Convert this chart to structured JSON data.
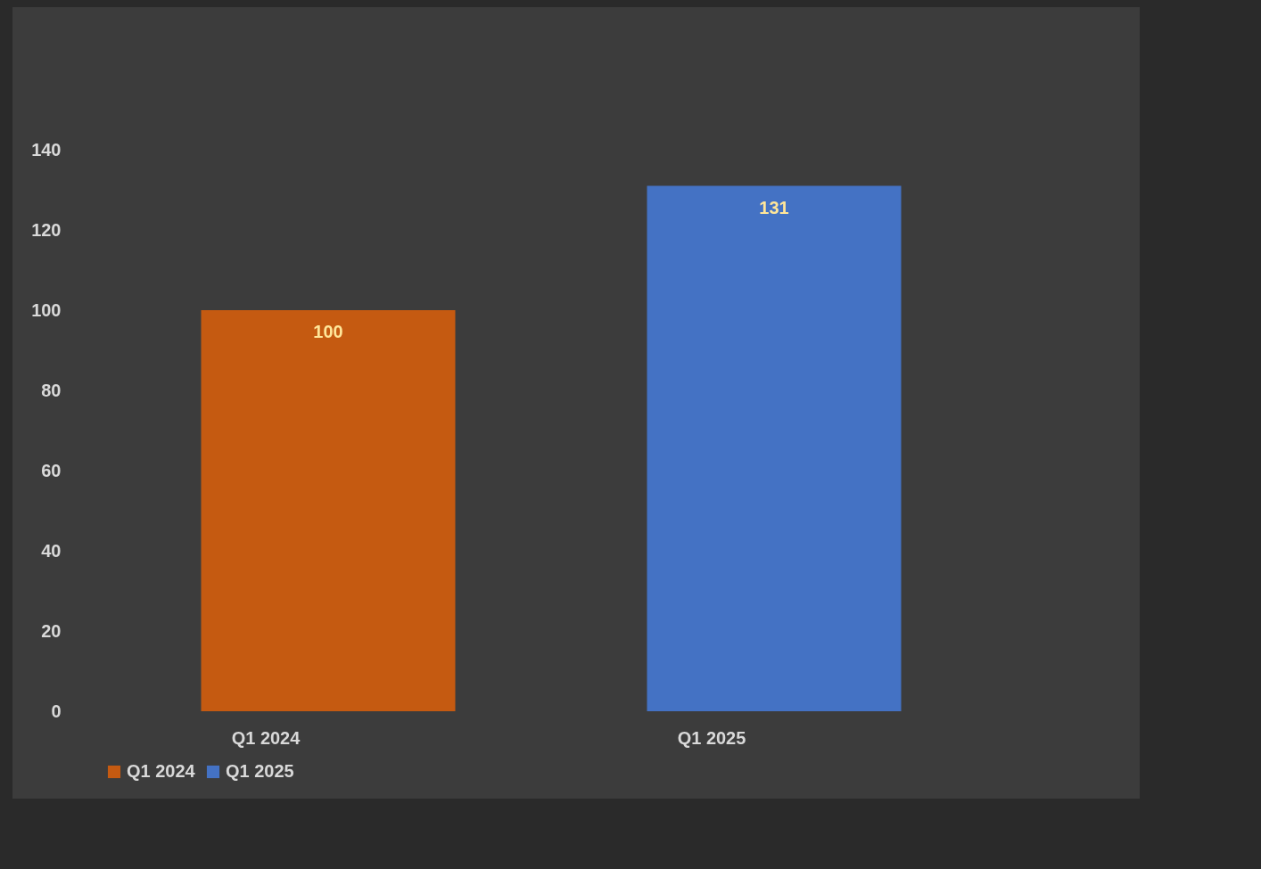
{
  "chart_data": {
    "type": "bar",
    "categories": [
      "Q1 2024",
      "Q1 2025"
    ],
    "series": [
      {
        "name": "Q1 2024",
        "color": "#c55a11",
        "values": [
          100,
          null
        ]
      },
      {
        "name": "Q1 2025",
        "color": "#4472c4",
        "values": [
          null,
          131
        ]
      }
    ],
    "ylim": [
      0,
      140
    ],
    "yticks": [
      0,
      20,
      40,
      60,
      80,
      100,
      120,
      140
    ],
    "grid": false,
    "legend": "bottom",
    "data_labels": true
  }
}
